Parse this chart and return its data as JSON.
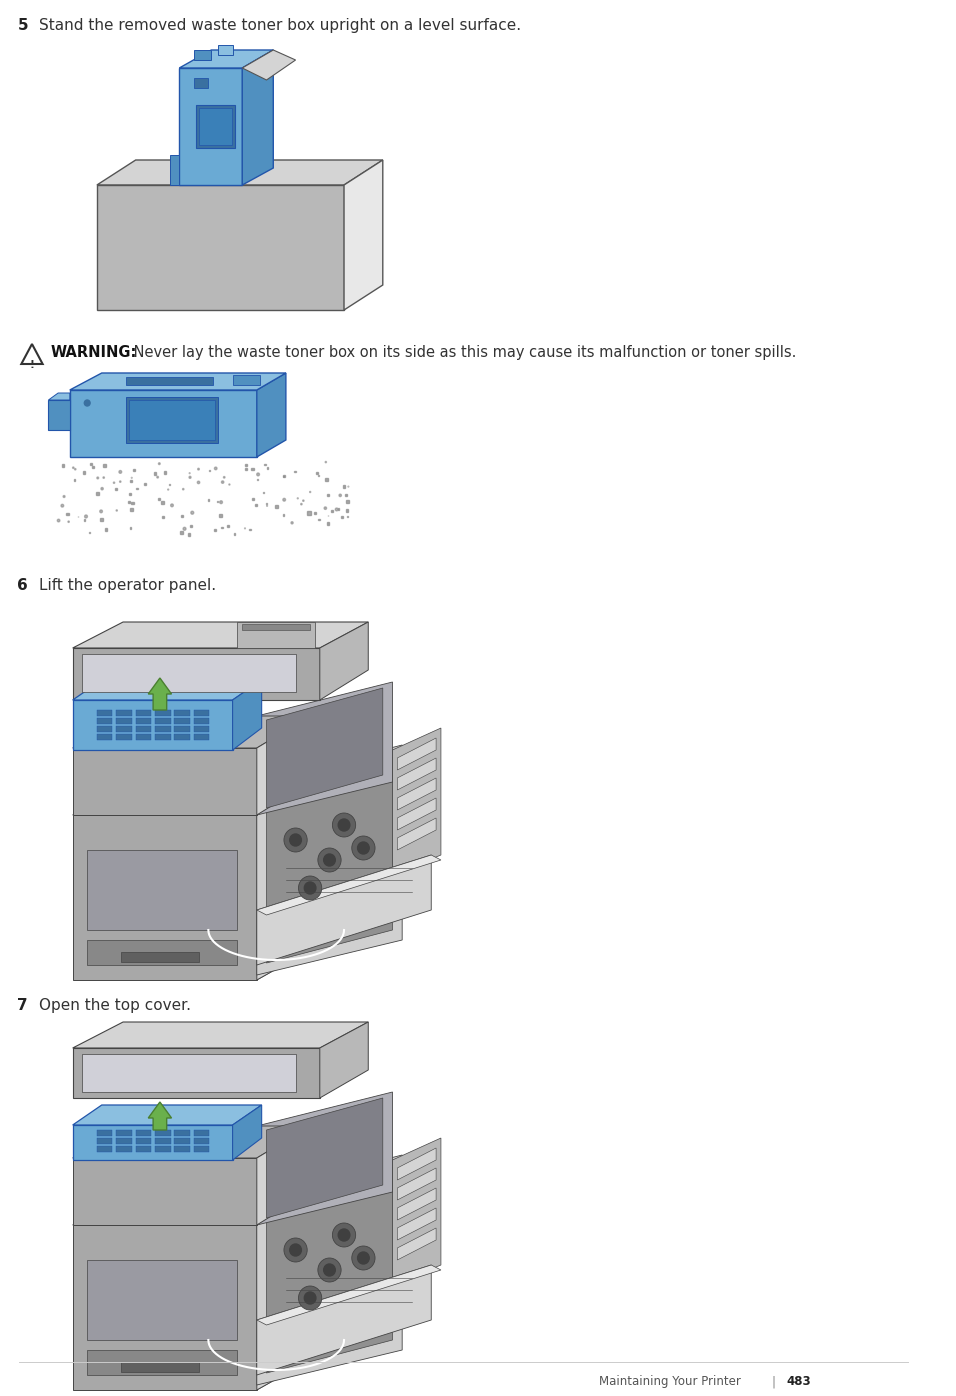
{
  "bg_color": "#ffffff",
  "step5_num": "5",
  "step5_text": "Stand the removed waste toner box upright on a level surface.",
  "warning_bold": "WARNING:",
  "warning_normal": " Never lay the waste toner box on its side as this may cause its malfunction or toner spills.",
  "step6_num": "6",
  "step6_text": "Lift the operator panel.",
  "step7_num": "7",
  "step7_text": "Open the top cover.",
  "footer_label": "Maintaining Your Printer",
  "footer_sep": "|",
  "footer_page": "483",
  "blue": "#6aaad4",
  "blue_mid": "#5090c0",
  "blue_light": "#8bbfe0",
  "blue_dark": "#3a70a0",
  "blue_edge": "#2255aa",
  "gray_lightest": "#e8e8e8",
  "gray_light": "#d4d4d4",
  "gray_mid": "#b8b8b8",
  "gray_body": "#a8a8a8",
  "gray_dark": "#888888",
  "gray_darker": "#606060",
  "green": "#6ab04c",
  "green_dark": "#4a8030",
  "black": "#222222",
  "edge_color": "#444444",
  "text_dark": "#333333",
  "text_num": "#222222",
  "spill_color": "#888888",
  "warn_tri_edge": "#333333"
}
